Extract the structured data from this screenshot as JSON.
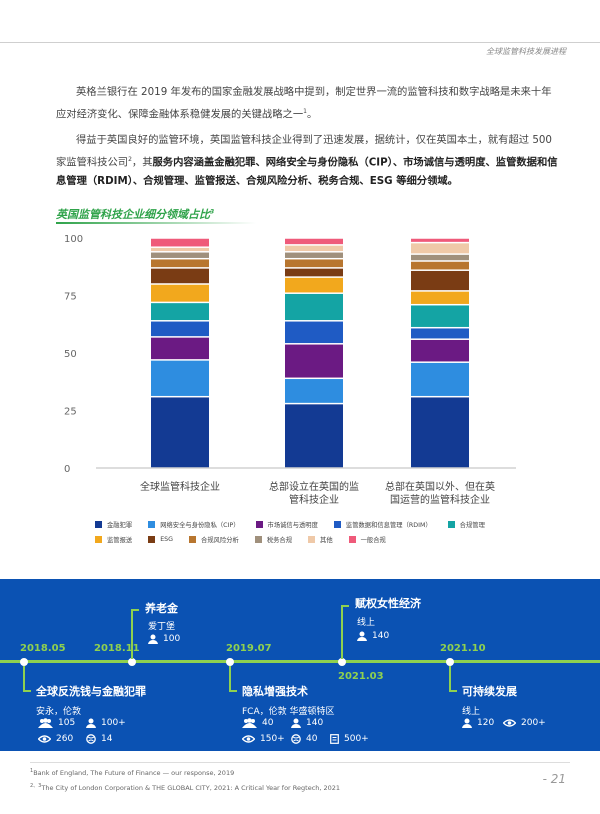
{
  "header": {
    "title": "全球监管科技发展进程"
  },
  "paragraph1": {
    "text": "英格兰银行在 2019 年发布的国家金融发展战略中提到，制定世界一流的监管科技和数字战略是未来十年应对经济变化、保障金融体系稳健发展的关键战略之一",
    "sup": "1",
    "end": "。"
  },
  "paragraph2": {
    "text_a": "得益于英国良好的监管环境，英国监管科技企业得到了迅速发展，据统计，仅在英国本土，就有超过 500 家监管科技公司",
    "sup": "2",
    "text_b": "，其",
    "bold": "服务内容涵盖金融犯罪、网络安全与身份隐私（CIP）、市场诚信与透明度、监管数据和信息管理（RDIM）、合规管理、监管报送、合规风险分析、税务合规、ESG 等细分领域。"
  },
  "chart_title": {
    "text": "英国监管科技企业细分领域占比",
    "sup": "3"
  },
  "chart_data": {
    "type": "bar",
    "stacked": true,
    "categories": [
      "全球监管科技企业",
      "总部设立在英国的监管科技企业",
      "总部在英国以外、但在英国运营的监管科技企业"
    ],
    "category_lines": [
      [
        "全球监管科技企业"
      ],
      [
        "总部设立在英国的监",
        "管科技企业"
      ],
      [
        "总部在英国以外、但在英",
        "国运营的监管科技企业"
      ]
    ],
    "ylim": [
      0,
      100
    ],
    "yticks": [
      0,
      25,
      50,
      75,
      100
    ],
    "grid": false,
    "legend_placement": "bottom",
    "series": [
      {
        "name": "金融犯罪",
        "color": "#133a93",
        "values": [
          31,
          28,
          31
        ]
      },
      {
        "name": "网络安全与身份隐私（CIP）",
        "color": "#2e8de0",
        "values": [
          16,
          11,
          15
        ]
      },
      {
        "name": "市场诚信与透明度",
        "color": "#6b1a83",
        "values": [
          10,
          15,
          10
        ]
      },
      {
        "name": "监管数据和信息管理（RDIM）",
        "color": "#1f5bc4",
        "values": [
          7,
          10,
          5
        ]
      },
      {
        "name": "合规管理",
        "color": "#14a4a4",
        "values": [
          8,
          12,
          10
        ]
      },
      {
        "name": "监管报送",
        "color": "#f2a81d",
        "values": [
          8,
          7,
          6
        ]
      },
      {
        "name": "ESG",
        "color": "#7a3c14",
        "values": [
          7,
          4,
          9
        ]
      },
      {
        "name": "合规风险分析",
        "color": "#b8762f",
        "values": [
          4,
          4,
          4
        ]
      },
      {
        "name": "税务合规",
        "color": "#a0907c",
        "values": [
          3,
          3,
          3
        ]
      },
      {
        "name": "其他",
        "color": "#efc9a8",
        "values": [
          2,
          3,
          5
        ]
      },
      {
        "name": "一般合规",
        "color": "#ef5a7a",
        "values": [
          4,
          3,
          2
        ]
      }
    ]
  },
  "timeline": {
    "dates": [
      "2018.05",
      "2018.11",
      "2019.07",
      "2021.03",
      "2021.10"
    ],
    "events": [
      {
        "title": "全球反洗钱与金融犯罪",
        "location": "安永，伦敦",
        "stats": [
          {
            "icon": "group-icon",
            "value": "105"
          },
          {
            "icon": "person-icon",
            "value": "100+"
          },
          {
            "icon": "eye-icon",
            "value": "260"
          },
          {
            "icon": "globe-icon",
            "value": "14"
          }
        ]
      },
      {
        "title": "养老金",
        "location": "爱丁堡",
        "stats": [
          {
            "icon": "person-icon",
            "value": "100"
          }
        ]
      },
      {
        "title": "隐私增强技术",
        "location": "FCA，伦敦 华盛顿特区",
        "stats": [
          {
            "icon": "group-icon",
            "value": "40"
          },
          {
            "icon": "person-icon",
            "value": "140"
          },
          {
            "icon": "eye-icon",
            "value": "150+"
          },
          {
            "icon": "globe-icon",
            "value": "40"
          },
          {
            "icon": "doc-icon",
            "value": "500+"
          }
        ]
      },
      {
        "title": "赋权女性经济",
        "location": "线上",
        "stats": [
          {
            "icon": "person-icon",
            "value": "140"
          }
        ]
      },
      {
        "title": "可持续发展",
        "location": "线上",
        "stats": [
          {
            "icon": "person-icon",
            "value": "120"
          },
          {
            "icon": "eye-icon",
            "value": "200+"
          }
        ]
      }
    ]
  },
  "footnotes": {
    "fn1": {
      "sup": "1",
      "text": "Bank of England, The Future of Finance — our response, 2019"
    },
    "fn2": {
      "sup": "2、3",
      "text": "The City of London Corporation & THE GLOBAL CITY, 2021: A Critical Year for Regtech, 2021"
    }
  },
  "page_number": "- 21"
}
